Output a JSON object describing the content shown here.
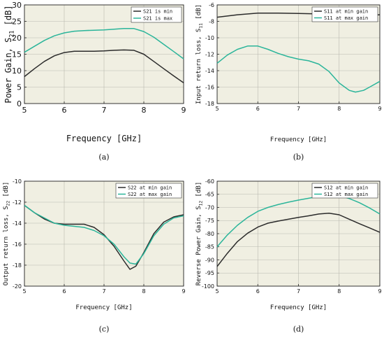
{
  "chart_data": [
    {
      "type": "line",
      "panel": "(a)",
      "xlabel": "Frequency [GHz]",
      "ylabel": "Power Gain, S21 [dB]",
      "ylabel_main": "Power Gain, S",
      "ylabel_sub": "21",
      "ylabel_unit": " [dB]",
      "xlim": [
        5,
        9
      ],
      "ylim": [
        0,
        30
      ],
      "xticks": [
        5,
        6,
        7,
        8,
        9
      ],
      "yticks": [
        0,
        5,
        10,
        15,
        20,
        25,
        30
      ],
      "grid": true,
      "legend_position": "top-right",
      "series": [
        {
          "name": "S21 is min",
          "color": "#2b2b2b",
          "x": [
            5,
            5.25,
            5.5,
            5.75,
            6,
            6.25,
            6.5,
            6.75,
            7,
            7.25,
            7.5,
            7.75,
            8,
            8.25,
            8.5,
            8.75,
            9
          ],
          "y": [
            8.2,
            10.6,
            12.8,
            14.5,
            15.5,
            15.9,
            15.9,
            15.9,
            16.0,
            16.2,
            16.3,
            16.2,
            15.0,
            12.8,
            10.6,
            8.4,
            6.3
          ]
        },
        {
          "name": "S21 is max",
          "color": "#2bb59a",
          "x": [
            5,
            5.25,
            5.5,
            5.75,
            6,
            6.25,
            6.5,
            6.75,
            7,
            7.25,
            7.5,
            7.75,
            8,
            8.25,
            8.5,
            8.75,
            9
          ],
          "y": [
            15.6,
            17.4,
            19.2,
            20.6,
            21.5,
            22.0,
            22.2,
            22.3,
            22.4,
            22.6,
            22.8,
            22.8,
            21.9,
            20.2,
            18.0,
            15.8,
            13.6
          ]
        }
      ]
    },
    {
      "type": "line",
      "panel": "(b)",
      "xlabel": "Frequency [GHz]",
      "ylabel": "Input return loss, S11 [dB]",
      "ylabel_main": "Input return loss, S",
      "ylabel_sub": "11",
      "ylabel_unit": " [dB]",
      "xlim": [
        5,
        9
      ],
      "ylim": [
        -18,
        -6
      ],
      "xticks": [
        5,
        6,
        7,
        8,
        9
      ],
      "yticks": [
        -18,
        -16,
        -14,
        -12,
        -10,
        -8,
        -6
      ],
      "grid": true,
      "legend_position": "top-right",
      "series": [
        {
          "name": "S11 at min gain",
          "color": "#2b2b2b",
          "x": [
            5,
            5.5,
            6,
            6.5,
            7,
            7.5,
            8,
            8.5,
            9
          ],
          "y": [
            -7.5,
            -7.2,
            -7.0,
            -7.0,
            -7.05,
            -7.1,
            -7.2,
            -7.3,
            -7.2
          ]
        },
        {
          "name": "S11 at max gain",
          "color": "#2bb59a",
          "x": [
            5,
            5.25,
            5.5,
            5.75,
            6,
            6.25,
            6.5,
            6.75,
            7,
            7.25,
            7.5,
            7.75,
            8,
            8.25,
            8.4,
            8.6,
            8.75,
            9
          ],
          "y": [
            -13.1,
            -12.1,
            -11.4,
            -11.0,
            -11.0,
            -11.4,
            -11.9,
            -12.3,
            -12.6,
            -12.8,
            -13.2,
            -14.1,
            -15.5,
            -16.4,
            -16.6,
            -16.4,
            -16.0,
            -15.3
          ]
        }
      ]
    },
    {
      "type": "line",
      "panel": "(c)",
      "xlabel": "Frequency [GHz]",
      "ylabel": "Output return loss, S22 [dB]",
      "ylabel_main": "Output return loss, S",
      "ylabel_sub": "22",
      "ylabel_unit": " [dB]",
      "xlim": [
        5,
        9
      ],
      "ylim": [
        -20,
        -10
      ],
      "xticks": [
        5,
        6,
        7,
        8,
        9
      ],
      "yticks": [
        -20,
        -18,
        -16,
        -14,
        -12,
        -10
      ],
      "grid": true,
      "legend_position": "top-right",
      "series": [
        {
          "name": "S22 at min gain",
          "color": "#2b2b2b",
          "x": [
            5,
            5.25,
            5.5,
            5.75,
            6,
            6.25,
            6.5,
            6.75,
            7,
            7.25,
            7.5,
            7.65,
            7.8,
            8,
            8.25,
            8.5,
            8.75,
            9
          ],
          "y": [
            -12.3,
            -13.0,
            -13.6,
            -14.0,
            -14.1,
            -14.1,
            -14.1,
            -14.4,
            -15.1,
            -16.2,
            -17.6,
            -18.4,
            -18.1,
            -16.8,
            -15.0,
            -13.9,
            -13.4,
            -13.2
          ]
        },
        {
          "name": "S22 at max gain",
          "color": "#2bb59a",
          "x": [
            5,
            5.25,
            5.5,
            5.75,
            6,
            6.25,
            6.5,
            6.75,
            7,
            7.25,
            7.5,
            7.65,
            7.8,
            8,
            8.25,
            8.5,
            8.75,
            9
          ],
          "y": [
            -12.3,
            -13.0,
            -13.5,
            -14.0,
            -14.2,
            -14.3,
            -14.4,
            -14.7,
            -15.2,
            -16.0,
            -17.2,
            -17.8,
            -17.9,
            -16.9,
            -15.2,
            -14.1,
            -13.5,
            -13.3
          ]
        }
      ]
    },
    {
      "type": "line",
      "panel": "(d)",
      "xlabel": "Frequency [GHz]",
      "ylabel": "Reverse Power Gain, S12 [dB]",
      "ylabel_main": "Reverse Power Gain, S",
      "ylabel_sub": "12",
      "ylabel_unit": " [dB]",
      "xlim": [
        5,
        9
      ],
      "ylim": [
        -100,
        -60
      ],
      "xticks": [
        5,
        6,
        7,
        8,
        9
      ],
      "yticks": [
        -100,
        -95,
        -90,
        -85,
        -80,
        -75,
        -70,
        -65,
        -60
      ],
      "grid": true,
      "legend_position": "top-right",
      "series": [
        {
          "name": "S12 at min gain",
          "color": "#2b2b2b",
          "x": [
            5,
            5.25,
            5.5,
            5.75,
            6,
            6.25,
            6.5,
            6.75,
            7,
            7.25,
            7.5,
            7.75,
            8,
            8.25,
            8.5,
            8.75,
            9
          ],
          "y": [
            -92.5,
            -87.5,
            -83.0,
            -79.8,
            -77.5,
            -76.0,
            -75.2,
            -74.5,
            -73.8,
            -73.2,
            -72.5,
            -72.2,
            -72.8,
            -74.5,
            -76.2,
            -77.8,
            -79.5
          ]
        },
        {
          "name": "S12 at max gain",
          "color": "#2bb59a",
          "x": [
            5,
            5.25,
            5.5,
            5.75,
            6,
            6.25,
            6.5,
            6.75,
            7,
            7.25,
            7.5,
            7.75,
            8,
            8.25,
            8.5,
            8.75,
            9
          ],
          "y": [
            -85.0,
            -80.5,
            -76.8,
            -73.8,
            -71.5,
            -70.0,
            -68.9,
            -68.0,
            -67.2,
            -66.5,
            -65.8,
            -65.3,
            -65.5,
            -66.6,
            -68.2,
            -70.2,
            -72.5
          ]
        }
      ]
    }
  ]
}
